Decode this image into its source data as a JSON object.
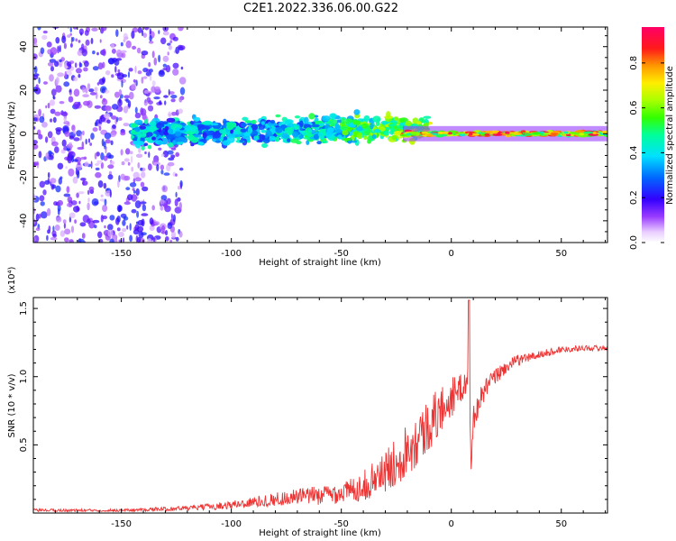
{
  "title": "C2E1.2022.336.06.00.G22",
  "chart_data": [
    {
      "type": "heatmap",
      "name": "spectrogram",
      "xlabel": "Height of straight line (km)",
      "ylabel": "Frequency (Hz)",
      "xlim": [
        -190,
        71
      ],
      "ylim": [
        -50,
        49
      ],
      "xticks": [
        -150,
        -100,
        -50,
        0,
        50
      ],
      "yticks": [
        -40,
        -20,
        0,
        20,
        40
      ],
      "colorbar": {
        "label": "Normalized spectral amplitude",
        "range": [
          0.0,
          0.96
        ],
        "ticks": [
          "0.0",
          "0.2",
          "0.4",
          "0.6",
          "0.8"
        ],
        "colormap": "rainbow (white-purple-blue-cyan-green-yellow-red-magenta)"
      },
      "features": [
        {
          "x_range": [
            -190,
            -122
          ],
          "y_spread": 50,
          "amplitude": [
            0.05,
            0.25
          ],
          "description_x": "noise region"
        },
        {
          "x_range": [
            -145,
            -10
          ],
          "y_spread": 8,
          "amplitude": [
            0.2,
            0.5
          ]
        },
        {
          "x_range": [
            -22,
            71
          ],
          "y_spread": 3,
          "amplitude": [
            0.4,
            0.95
          ]
        }
      ]
    },
    {
      "type": "line",
      "name": "snr",
      "xlabel": "Height of straight line (km)",
      "ylabel": "SNR (10 * v/v)",
      "y_multiplier": "(x10⁴)",
      "xlim": [
        -190,
        71
      ],
      "ylim": [
        0.0,
        1.58
      ],
      "xticks": [
        -150,
        -100,
        -50,
        0,
        50
      ],
      "yticks": [
        0.5,
        1.0,
        1.5
      ],
      "series": [
        {
          "color": "#ee3333",
          "x": [
            -190,
            -170,
            -150,
            -130,
            -115,
            -100,
            -90,
            -80,
            -70,
            -60,
            -50,
            -45,
            -40,
            -35,
            -30,
            -25,
            -20,
            -15,
            -10,
            -5,
            0,
            5,
            8,
            9,
            10,
            15,
            20,
            25,
            30,
            40,
            50,
            60,
            71
          ],
          "y": [
            0.02,
            0.02,
            0.02,
            0.03,
            0.04,
            0.06,
            0.08,
            0.1,
            0.12,
            0.13,
            0.15,
            0.17,
            0.2,
            0.25,
            0.3,
            0.38,
            0.48,
            0.55,
            0.65,
            0.75,
            0.85,
            0.92,
            1.0,
            0.3,
            0.7,
            0.9,
            1.0,
            1.07,
            1.12,
            1.16,
            1.2,
            1.21,
            1.21
          ],
          "noise": [
            0.01,
            0.01,
            0.01,
            0.015,
            0.02,
            0.03,
            0.04,
            0.05,
            0.06,
            0.07,
            0.08,
            0.09,
            0.11,
            0.13,
            0.15,
            0.18,
            0.2,
            0.2,
            0.2,
            0.18,
            0.15,
            0.1,
            0.1,
            0.05,
            0.1,
            0.08,
            0.06,
            0.05,
            0.04,
            0.03,
            0.025,
            0.02,
            0.02
          ]
        }
      ]
    }
  ]
}
